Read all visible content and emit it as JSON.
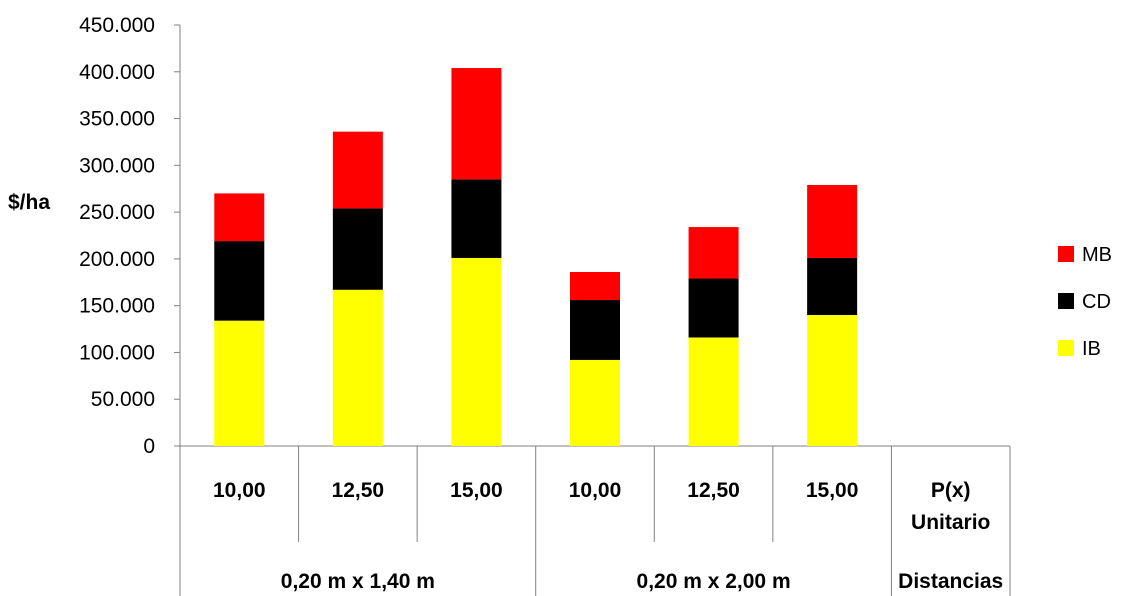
{
  "chart_data": {
    "type": "bar",
    "stacked": true,
    "ylabel": "$/ha",
    "ylim": [
      0,
      450000
    ],
    "yticks": [
      0,
      50000,
      100000,
      150000,
      200000,
      250000,
      300000,
      350000,
      400000,
      450000
    ],
    "ytick_labels": [
      "0",
      "50.000",
      "100.000",
      "150.000",
      "200.000",
      "250.000",
      "300.000",
      "350.000",
      "400.000",
      "450.000"
    ],
    "categories": [
      "10,00",
      "12,50",
      "15,00",
      "10,00",
      "12,50",
      "15,00",
      "P(x)"
    ],
    "sub_label": "Unitario",
    "groups": [
      {
        "label": "0,20 m x 1,40 m",
        "span": 3
      },
      {
        "label": "0,20 m x 2,00 m",
        "span": 3
      },
      {
        "label": "Distancias",
        "span": 1
      }
    ],
    "series": [
      {
        "name": "IB",
        "color": "#FFFF00",
        "values": [
          134000,
          167000,
          201000,
          92000,
          116000,
          140000,
          null
        ]
      },
      {
        "name": "CD",
        "color": "#000000",
        "values": [
          85000,
          87000,
          84000,
          64000,
          63000,
          61000,
          null
        ]
      },
      {
        "name": "MB",
        "color": "#FF0000",
        "values": [
          51000,
          82000,
          119000,
          30000,
          55000,
          78000,
          null
        ]
      }
    ],
    "legend": {
      "position": "right",
      "order": [
        "MB",
        "CD",
        "IB"
      ]
    },
    "grid": false
  }
}
